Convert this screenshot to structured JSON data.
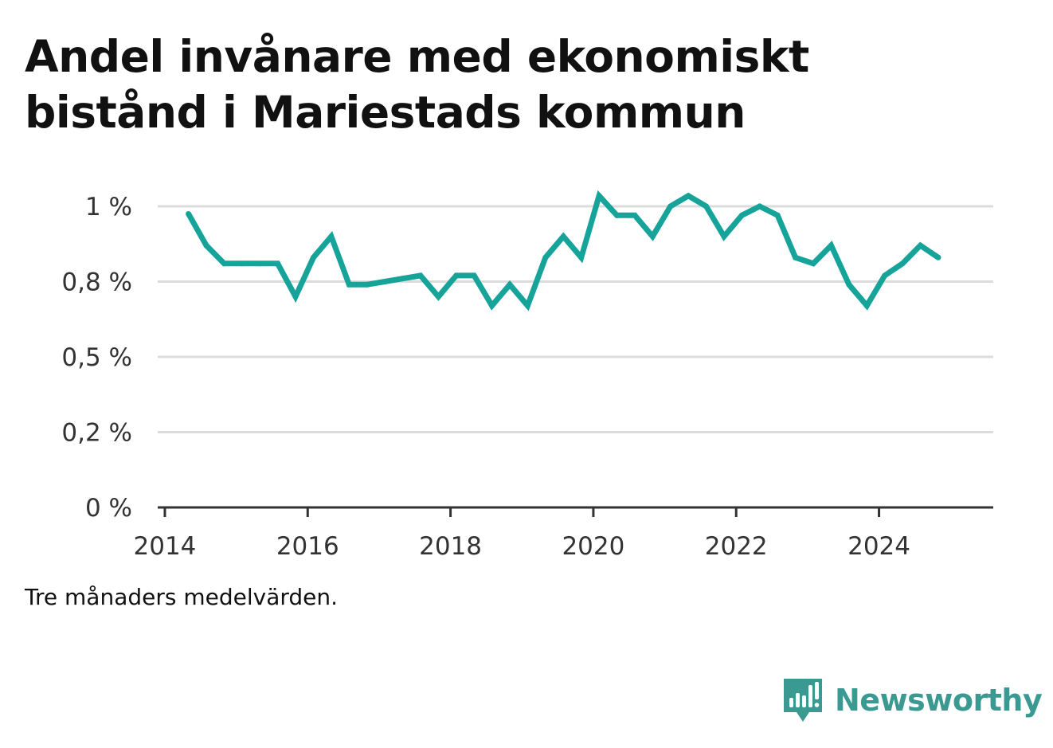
{
  "title_lines": [
    "Andel invånare med ekonomiskt",
    "bistånd i Mariestads kommun"
  ],
  "note": "Tre månaders medelvärden.",
  "brand": {
    "name": "Newsworthy",
    "icon": "newsworthy-logo-icon",
    "color": "#3a9a92"
  },
  "chart_data": {
    "type": "line",
    "title": "Andel invånare med ekonomiskt bistånd i Mariestads kommun",
    "xlabel": "",
    "ylabel": "",
    "xlim": [
      2013.9,
      2025.6
    ],
    "ylim": [
      0,
      1.0
    ],
    "x_ticks": [
      2014,
      2016,
      2018,
      2020,
      2022,
      2024
    ],
    "x_tick_labels": [
      "2014",
      "2016",
      "2018",
      "2020",
      "2022",
      "2024"
    ],
    "y_ticks": [
      0,
      0.25,
      0.5,
      0.75,
      1.0
    ],
    "y_tick_labels": [
      "0 %",
      "0,2 %",
      "0,5 %",
      "0,8 %",
      "1 %"
    ],
    "grid": true,
    "line_color": "#16a39a",
    "series": [
      {
        "x": [
          2014.33,
          2014.58,
          2014.83,
          2015.08,
          2015.33,
          2015.58,
          2015.83,
          2016.08,
          2016.33,
          2016.58,
          2016.83,
          2017.08,
          2017.33,
          2017.58,
          2017.83,
          2018.08,
          2018.33,
          2018.58,
          2018.83,
          2019.08,
          2019.33,
          2019.58,
          2019.83,
          2020.08,
          2020.33,
          2020.58,
          2020.83,
          2021.08,
          2021.33,
          2021.58,
          2021.83,
          2022.08,
          2022.33,
          2022.58,
          2022.83,
          2023.08,
          2023.33,
          2023.58,
          2023.83,
          2024.08,
          2024.33,
          2024.58,
          2024.83
        ],
        "y": [
          0.975,
          0.87,
          0.81,
          0.81,
          0.81,
          0.81,
          0.7,
          0.83,
          0.9,
          0.74,
          0.74,
          0.75,
          0.76,
          0.77,
          0.7,
          0.77,
          0.77,
          0.67,
          0.74,
          0.67,
          0.83,
          0.9,
          0.83,
          1.035,
          0.97,
          0.97,
          0.9,
          1.0,
          1.035,
          1.0,
          0.9,
          0.97,
          1.0,
          0.97,
          0.83,
          0.81,
          0.87,
          0.74,
          0.67,
          0.77,
          0.81,
          0.87,
          0.83
        ]
      }
    ]
  }
}
